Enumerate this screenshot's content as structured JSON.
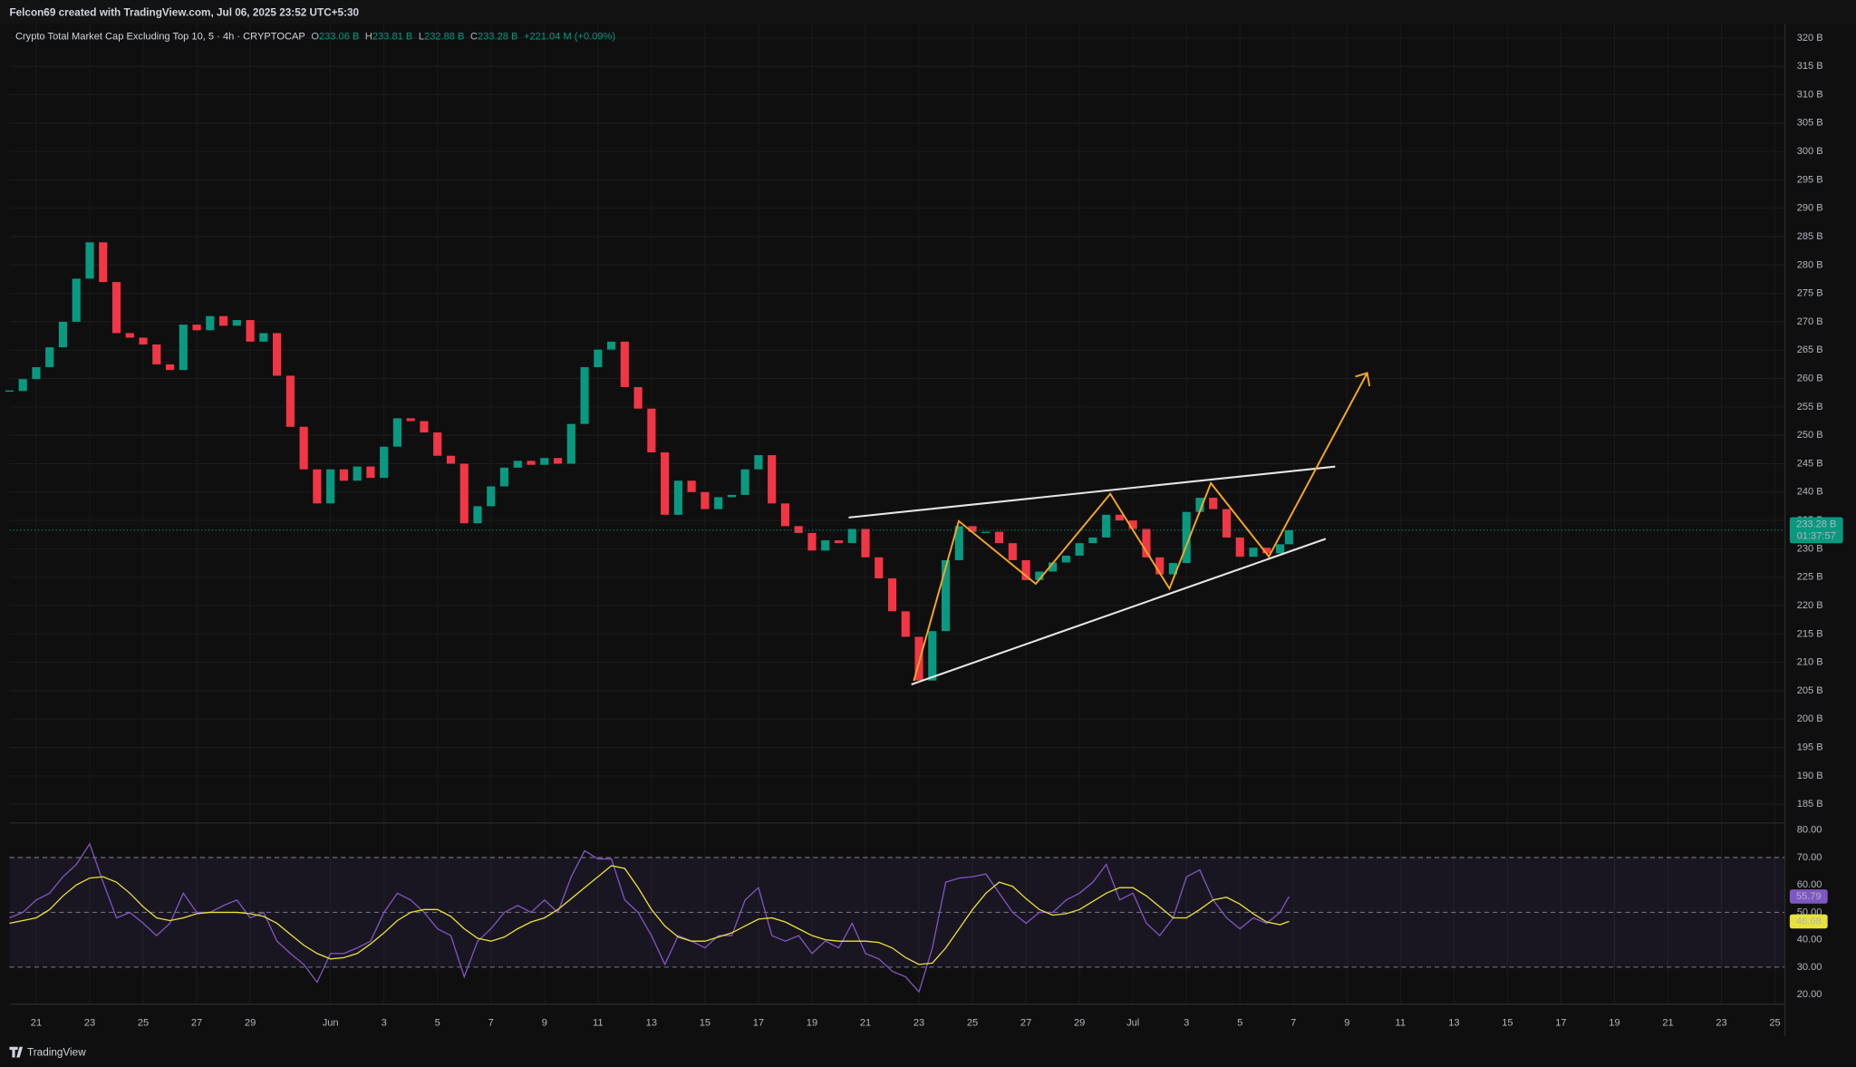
{
  "header": {
    "author_line": "Felcon69 created with TradingView.com, Jul 06, 2025 23:52 UTC+5:30"
  },
  "chart_data": {
    "type": "candlestick",
    "title": "Crypto Total Market Cap Excluding Top 10, 5 · 4h · CRYPTOCAP",
    "ohlc_legend": [
      {
        "key": "O",
        "value": "233.06 B"
      },
      {
        "key": "H",
        "value": "233.81 B"
      },
      {
        "key": "L",
        "value": "232.88 B"
      },
      {
        "key": "C",
        "value": "233.28 B"
      }
    ],
    "change": "+221.04 M (+0.09%)",
    "last_price_label": "233.28 B",
    "countdown": "01:37:57",
    "up_color": "#089981",
    "down_color": "#f23645",
    "grid": true,
    "x": [
      "2025-05-20T00:00",
      "2025-05-20T12:00",
      "2025-05-21T00:00",
      "2025-05-21T12:00",
      "2025-05-22T00:00",
      "2025-05-22T12:00",
      "2025-05-23T00:00",
      "2025-05-23T12:00",
      "2025-05-24T00:00",
      "2025-05-24T12:00",
      "2025-05-25T00:00",
      "2025-05-25T12:00",
      "2025-05-26T00:00",
      "2025-05-26T12:00",
      "2025-05-27T00:00",
      "2025-05-27T12:00",
      "2025-05-28T00:00",
      "2025-05-28T12:00",
      "2025-05-29T00:00",
      "2025-05-29T12:00",
      "2025-05-30T00:00",
      "2025-05-30T12:00",
      "2025-05-31T00:00",
      "2025-05-31T12:00",
      "2025-06-01T00:00",
      "2025-06-01T12:00",
      "2025-06-02T00:00",
      "2025-06-02T12:00",
      "2025-06-03T00:00",
      "2025-06-03T12:00",
      "2025-06-04T00:00",
      "2025-06-04T12:00",
      "2025-06-05T00:00",
      "2025-06-05T12:00",
      "2025-06-06T00:00",
      "2025-06-06T12:00",
      "2025-06-07T00:00",
      "2025-06-07T12:00",
      "2025-06-08T00:00",
      "2025-06-08T12:00",
      "2025-06-09T00:00",
      "2025-06-09T12:00",
      "2025-06-10T00:00",
      "2025-06-10T12:00",
      "2025-06-11T00:00",
      "2025-06-11T12:00",
      "2025-06-12T00:00",
      "2025-06-12T12:00",
      "2025-06-13T00:00",
      "2025-06-13T12:00",
      "2025-06-14T00:00",
      "2025-06-14T12:00",
      "2025-06-15T00:00",
      "2025-06-15T12:00",
      "2025-06-16T00:00",
      "2025-06-16T12:00",
      "2025-06-17T00:00",
      "2025-06-17T12:00",
      "2025-06-18T00:00",
      "2025-06-18T12:00",
      "2025-06-19T00:00",
      "2025-06-19T12:00",
      "2025-06-20T00:00",
      "2025-06-20T12:00",
      "2025-06-21T00:00",
      "2025-06-21T12:00",
      "2025-06-22T00:00",
      "2025-06-22T12:00",
      "2025-06-23T00:00",
      "2025-06-23T12:00",
      "2025-06-24T00:00",
      "2025-06-24T12:00",
      "2025-06-25T00:00",
      "2025-06-25T12:00",
      "2025-06-26T00:00",
      "2025-06-26T12:00",
      "2025-06-27T00:00",
      "2025-06-27T12:00",
      "2025-06-28T00:00",
      "2025-06-28T12:00",
      "2025-06-29T00:00",
      "2025-06-29T12:00",
      "2025-06-30T00:00",
      "2025-06-30T12:00",
      "2025-07-01T00:00",
      "2025-07-01T12:00",
      "2025-07-02T00:00",
      "2025-07-02T12:00",
      "2025-07-03T00:00",
      "2025-07-03T12:00",
      "2025-07-04T00:00",
      "2025-07-04T12:00",
      "2025-07-05T00:00",
      "2025-07-05T12:00",
      "2025-07-06T00:00",
      "2025-07-06T12:00",
      "2025-07-06T20:00"
    ],
    "values": [
      257.8,
      259.9,
      262,
      265.5,
      270,
      277.6,
      284,
      277,
      268,
      267.2,
      266,
      262.5,
      261.5,
      269.5,
      268.5,
      271,
      269.3,
      270.3,
      266.5,
      268,
      260.5,
      251.5,
      244,
      238,
      244,
      242,
      244.5,
      242.5,
      248,
      253,
      252.5,
      250.5,
      246.4,
      245,
      234.5,
      237.5,
      241,
      244.3,
      245.5,
      244.8,
      246,
      245,
      252,
      262,
      265.1,
      266.5,
      258.5,
      254.7,
      247,
      236,
      242,
      240,
      237,
      239.1,
      239.5,
      244,
      246.5,
      238,
      234,
      232.8,
      229.7,
      231.5,
      231,
      233.5,
      228.5,
      224.8,
      219,
      214.5,
      206.8,
      215.5,
      228,
      234,
      233,
      233,
      231,
      228,
      224.5,
      226,
      227.6,
      228.8,
      231,
      232,
      236,
      235,
      233.5,
      228.5,
      225.5,
      227.5,
      236.5,
      239,
      237,
      232,
      228.6,
      230.2,
      229.2,
      230.8,
      233.28
    ],
    "xlim": [
      "2025-05-20T00:00",
      "2025-07-25T09:00"
    ],
    "xticks": [
      {
        "value": "2025-05-21",
        "label": "21"
      },
      {
        "value": "2025-05-23",
        "label": "23"
      },
      {
        "value": "2025-05-25",
        "label": "25"
      },
      {
        "value": "2025-05-27",
        "label": "27"
      },
      {
        "value": "2025-05-29",
        "label": "29"
      },
      {
        "value": "2025-06-01",
        "label": "Jun"
      },
      {
        "value": "2025-06-03",
        "label": "3"
      },
      {
        "value": "2025-06-05",
        "label": "5"
      },
      {
        "value": "2025-06-07",
        "label": "7"
      },
      {
        "value": "2025-06-09",
        "label": "9"
      },
      {
        "value": "2025-06-11",
        "label": "11"
      },
      {
        "value": "2025-06-13",
        "label": "13"
      },
      {
        "value": "2025-06-15",
        "label": "15"
      },
      {
        "value": "2025-06-17",
        "label": "17"
      },
      {
        "value": "2025-06-19",
        "label": "19"
      },
      {
        "value": "2025-06-21",
        "label": "21"
      },
      {
        "value": "2025-06-23",
        "label": "23"
      },
      {
        "value": "2025-06-25",
        "label": "25"
      },
      {
        "value": "2025-06-27",
        "label": "27"
      },
      {
        "value": "2025-06-29",
        "label": "29"
      },
      {
        "value": "2025-07-01",
        "label": "Jul"
      },
      {
        "value": "2025-07-03",
        "label": "3"
      },
      {
        "value": "2025-07-05",
        "label": "5"
      },
      {
        "value": "2025-07-07",
        "label": "7"
      },
      {
        "value": "2025-07-09",
        "label": "9"
      },
      {
        "value": "2025-07-11",
        "label": "11"
      },
      {
        "value": "2025-07-13",
        "label": "13"
      },
      {
        "value": "2025-07-15",
        "label": "15"
      },
      {
        "value": "2025-07-17",
        "label": "17"
      },
      {
        "value": "2025-07-19",
        "label": "19"
      },
      {
        "value": "2025-07-21",
        "label": "21"
      },
      {
        "value": "2025-07-23",
        "label": "23"
      },
      {
        "value": "2025-07-25",
        "label": "25"
      }
    ],
    "ylim": [
      181.7,
      322.5
    ],
    "yticks": [
      {
        "value": 185,
        "label": "185 B"
      },
      {
        "value": 190,
        "label": "190 B"
      },
      {
        "value": 195,
        "label": "195 B"
      },
      {
        "value": 200,
        "label": "200 B"
      },
      {
        "value": 205,
        "label": "205 B"
      },
      {
        "value": 210,
        "label": "210 B"
      },
      {
        "value": 215,
        "label": "215 B"
      },
      {
        "value": 220,
        "label": "220 B"
      },
      {
        "value": 225,
        "label": "225 B"
      },
      {
        "value": 230,
        "label": "230 B"
      },
      {
        "value": 235,
        "label": "235 B"
      },
      {
        "value": 240,
        "label": "240 B"
      },
      {
        "value": 245,
        "label": "245 B"
      },
      {
        "value": 250,
        "label": "250 B"
      },
      {
        "value": 255,
        "label": "255 B"
      },
      {
        "value": 260,
        "label": "260 B"
      },
      {
        "value": 265,
        "label": "265 B"
      },
      {
        "value": 270,
        "label": "270 B"
      },
      {
        "value": 275,
        "label": "275 B"
      },
      {
        "value": 280,
        "label": "280 B"
      },
      {
        "value": 285,
        "label": "285 B"
      },
      {
        "value": 290,
        "label": "290 B"
      },
      {
        "value": 295,
        "label": "295 B"
      },
      {
        "value": 300,
        "label": "300 B"
      },
      {
        "value": 305,
        "label": "305 B"
      },
      {
        "value": 310,
        "label": "310 B"
      },
      {
        "value": 315,
        "label": "315 B"
      },
      {
        "value": 320,
        "label": "320 B"
      }
    ],
    "rsi": {
      "ylim": [
        16.5,
        82.6
      ],
      "yticks": [
        {
          "value": 20,
          "label": "20.00"
        },
        {
          "value": 30,
          "label": "30.00"
        },
        {
          "value": 40,
          "label": "40.00"
        },
        {
          "value": 50,
          "label": "50.00"
        },
        {
          "value": 60,
          "label": "60.00"
        },
        {
          "value": 70,
          "label": "70.00"
        },
        {
          "value": 80,
          "label": "80.00"
        }
      ],
      "levels": [
        70,
        50,
        30
      ],
      "band_color": "#7e57c2",
      "series": [
        {
          "color": "#7e57c2",
          "values": [
            48,
            50,
            54.5,
            57,
            63,
            67.5,
            75,
            61,
            48,
            50,
            46,
            41.5,
            46,
            57,
            50,
            50,
            52.5,
            54.5,
            48,
            50,
            39.5,
            35,
            31,
            24.5,
            35,
            35,
            37,
            39.5,
            50,
            57,
            54.5,
            50,
            44,
            41.5,
            26.5,
            39.5,
            44,
            50,
            52.5,
            50,
            54.5,
            50,
            63,
            72.5,
            69.5,
            69.5,
            54.5,
            50,
            41.5,
            31,
            41.5,
            39.5,
            37,
            41.5,
            41.5,
            54.5,
            59,
            41.5,
            39.5,
            41.5,
            35,
            39.5,
            37,
            46,
            35,
            33,
            28.5,
            26.5,
            21,
            37,
            61,
            62.5,
            63,
            64,
            57,
            50,
            46,
            50,
            50,
            54.5,
            57,
            61,
            67.5,
            54.5,
            57,
            46,
            41.5,
            48,
            63,
            65.5,
            54.5,
            48,
            44,
            48,
            46,
            50,
            55.79
          ]
        },
        {
          "color": "#e8e23a",
          "values": [
            46,
            47,
            48,
            51,
            56,
            60,
            62.5,
            63,
            61,
            57,
            52,
            48,
            47,
            48,
            49.5,
            50,
            50,
            50,
            49.5,
            48.5,
            46,
            42,
            38,
            35,
            33,
            33.5,
            35,
            38.5,
            42.5,
            47,
            50,
            51,
            51,
            48.5,
            44,
            40.5,
            39.5,
            41,
            44,
            46.5,
            48,
            51,
            55,
            59,
            63,
            67,
            66,
            59,
            51,
            45,
            41,
            39.5,
            39.5,
            41,
            42.5,
            45,
            47.5,
            48,
            46.5,
            44,
            41.5,
            40,
            39.5,
            39.5,
            39.5,
            39,
            37,
            33.5,
            31,
            31.5,
            37,
            44,
            51,
            57,
            61,
            59.5,
            55,
            51,
            49,
            49.5,
            51,
            54,
            57,
            59,
            59,
            56,
            52,
            48,
            48,
            51,
            54.5,
            55.5,
            53,
            49.5,
            46.5,
            45.5,
            46.68
          ]
        }
      ]
    }
  },
  "footer": {
    "brand": "TradingView"
  }
}
